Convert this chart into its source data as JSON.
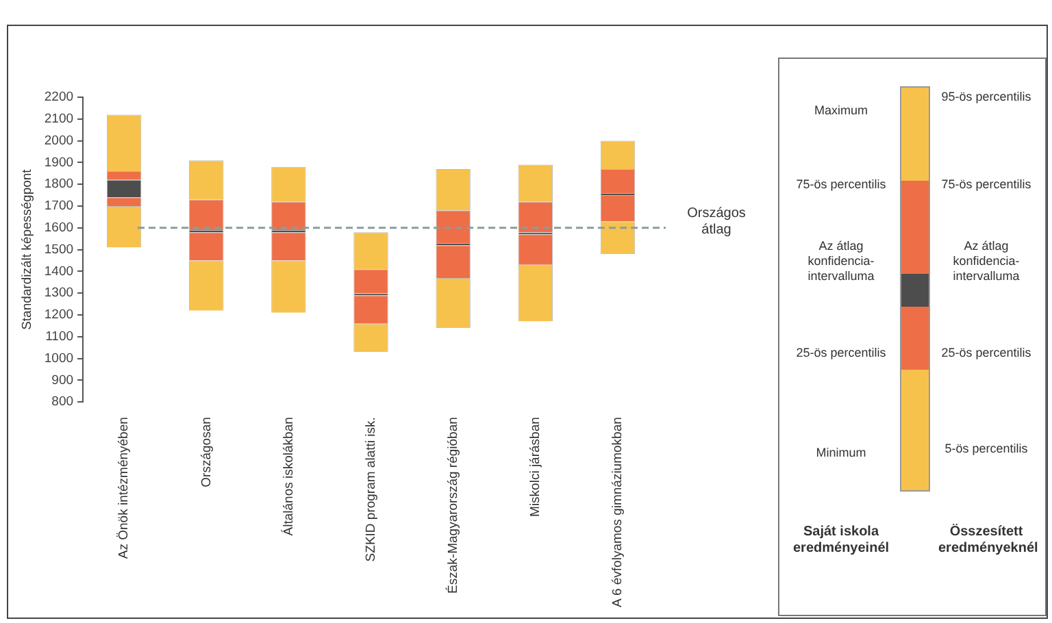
{
  "chart_data": {
    "type": "bar",
    "ylabel": "Standardizált képességpont",
    "categories": [
      "Az Önök intézményében",
      "Országosan",
      "Általános iskolákban",
      "SZKID program alatti isk.",
      "Észak-Magyarország régióban",
      "Miskolci járásban",
      "A 6 évfolyamos gimnáziumokban"
    ],
    "series": [
      {
        "color": "#f6c24c",
        "base": [
          1510,
          1220,
          1210,
          1030,
          1140,
          1170,
          1480
        ],
        "values": [
          190,
          230,
          240,
          130,
          230,
          260,
          150
        ]
      },
      {
        "color": "#ee6e47",
        "base": [
          1700,
          1450,
          1450,
          1160,
          1370,
          1430,
          1630
        ],
        "values": [
          40,
          130,
          130,
          130,
          150,
          140,
          120
        ]
      },
      {
        "color": "#4d4d4d",
        "base": [
          1740,
          1580,
          1580,
          1290,
          1520,
          1570,
          1750
        ],
        "values": [
          80,
          10,
          10,
          10,
          10,
          10,
          10
        ]
      },
      {
        "color": "#ee6e47",
        "base": [
          1820,
          1590,
          1590,
          1300,
          1530,
          1580,
          1760
        ],
        "values": [
          40,
          140,
          130,
          110,
          150,
          140,
          110
        ]
      },
      {
        "color": "#f6c24c",
        "base": [
          1860,
          1730,
          1720,
          1410,
          1680,
          1720,
          1870
        ],
        "values": [
          260,
          180,
          160,
          170,
          190,
          170,
          130
        ]
      }
    ],
    "ylim": [
      800,
      2200
    ],
    "yticks": [
      800,
      900,
      1000,
      1100,
      1200,
      1300,
      1400,
      1500,
      1600,
      1700,
      1800,
      1900,
      2000,
      2100,
      2200
    ],
    "grid": false,
    "ref_lines": [
      {
        "axis": "y",
        "value": 1600,
        "label": "Országos átlag",
        "color": "#8a9c9c",
        "line_style": "dashed"
      }
    ],
    "annotations": [
      "Maximum",
      "75-ös percentilis",
      "Az átlag konfidencia-intervalluma",
      "25-ös percentilis",
      "Minimum",
      "Saját iskola eredményeinél",
      "95-ös percentilis",
      "75-ös percentilis",
      "Az átlag konfidencia-intervalluma",
      "25-ös percentilis",
      "5-ös percentilis",
      "Összesített eredményeknél"
    ]
  }
}
